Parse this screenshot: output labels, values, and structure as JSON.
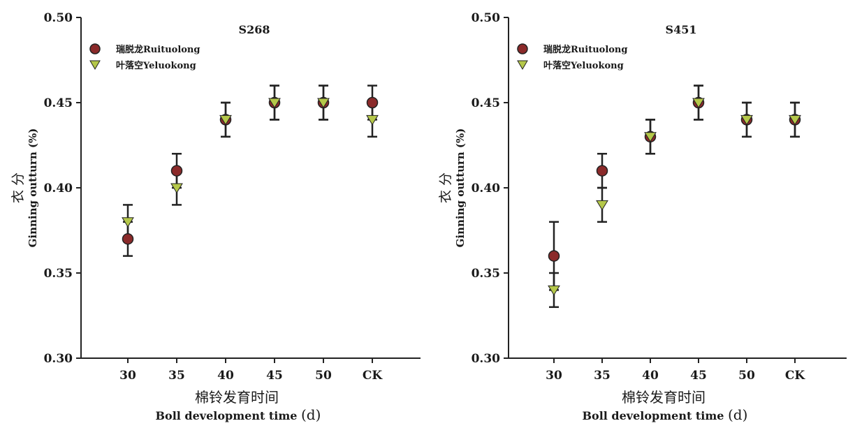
{
  "chart_data": [
    {
      "type": "scatter",
      "title": "S268",
      "xlabel_cn": "棉铃发育时间",
      "xlabel_en": "Boll development time",
      "xlabel_unit": "(d)",
      "ylabel_cn": "衣 分",
      "ylabel_en": "Ginning outturn (%)",
      "ylim": [
        0.3,
        0.5
      ],
      "yticks": [
        "0.30",
        "0.35",
        "0.40",
        "0.45",
        "0.50"
      ],
      "categories": [
        "30",
        "35",
        "40",
        "45",
        "50",
        "CK"
      ],
      "legend_position": "top-left",
      "series": [
        {
          "name": "瑞脱龙Ruituolong",
          "marker": "circle",
          "color": "#8b2a2a",
          "values": [
            0.37,
            0.41,
            0.44,
            0.45,
            0.45,
            0.45
          ],
          "errors": [
            0.01,
            0.01,
            0.01,
            0.01,
            0.01,
            0.01
          ]
        },
        {
          "name": "叶落空Yeluokong",
          "marker": "triangle-down",
          "color": "#b5c84a",
          "values": [
            0.38,
            0.4,
            0.44,
            0.45,
            0.45,
            0.44
          ],
          "errors": [
            0.01,
            0.01,
            0.01,
            0.01,
            0.01,
            0.01
          ]
        }
      ]
    },
    {
      "type": "scatter",
      "title": "S451",
      "xlabel_cn": "棉铃发育时间",
      "xlabel_en": "Boll development time",
      "xlabel_unit": "(d)",
      "ylabel_cn": "衣 分",
      "ylabel_en": "Ginning outturn (%)",
      "ylim": [
        0.3,
        0.5
      ],
      "yticks": [
        "0.30",
        "0.35",
        "0.40",
        "0.45",
        "0.50"
      ],
      "categories": [
        "30",
        "35",
        "40",
        "45",
        "50",
        "CK"
      ],
      "legend_position": "top-left",
      "series": [
        {
          "name": "瑞脱龙Ruituolong",
          "marker": "circle",
          "color": "#8b2a2a",
          "values": [
            0.36,
            0.41,
            0.43,
            0.45,
            0.44,
            0.44
          ],
          "errors": [
            0.02,
            0.01,
            0.01,
            0.01,
            0.01,
            0.01
          ]
        },
        {
          "name": "叶落空Yeluokong",
          "marker": "triangle-down",
          "color": "#b5c84a",
          "values": [
            0.34,
            0.39,
            0.43,
            0.45,
            0.44,
            0.44
          ],
          "errors": [
            0.01,
            0.01,
            0.01,
            0.01,
            0.01,
            0.01
          ]
        }
      ]
    }
  ]
}
